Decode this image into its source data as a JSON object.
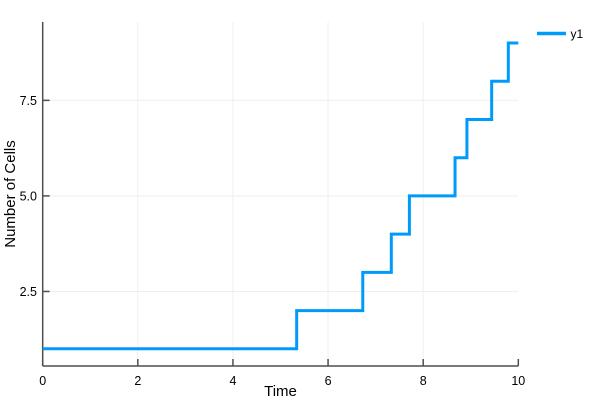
{
  "figure": {
    "background": "#FFFFFF",
    "axis_color": "#4F4F4F",
    "grid_color": "#EFEFEF",
    "text_color": "#000000"
  },
  "chart_data": {
    "type": "line",
    "step_mode": "post",
    "title": "",
    "xlabel": "Time",
    "ylabel": "Number of Cells",
    "x": [
      0,
      5.34,
      6.73,
      7.33,
      7.71,
      8.67,
      8.92,
      9.44,
      9.79
    ],
    "y": [
      1,
      2,
      3,
      4,
      5,
      6,
      7,
      8,
      9
    ],
    "x_end": 10,
    "xlim": [
      0,
      10
    ],
    "ylim": [
      0.55,
      9.55
    ],
    "xticks": {
      "values": [
        0,
        2,
        4,
        6,
        8,
        10
      ],
      "labels": [
        "0",
        "2",
        "4",
        "6",
        "8",
        "10"
      ]
    },
    "yticks": {
      "values": [
        2.5,
        5.0,
        7.5
      ],
      "labels": [
        "2.5",
        "5.0",
        "7.5"
      ]
    },
    "grid": true,
    "legend": {
      "position": "outside-top-right",
      "entries": [
        {
          "label": "y1"
        }
      ]
    },
    "series": [
      {
        "name": "y1",
        "color": "#009AFA",
        "line_width": 3
      }
    ]
  }
}
